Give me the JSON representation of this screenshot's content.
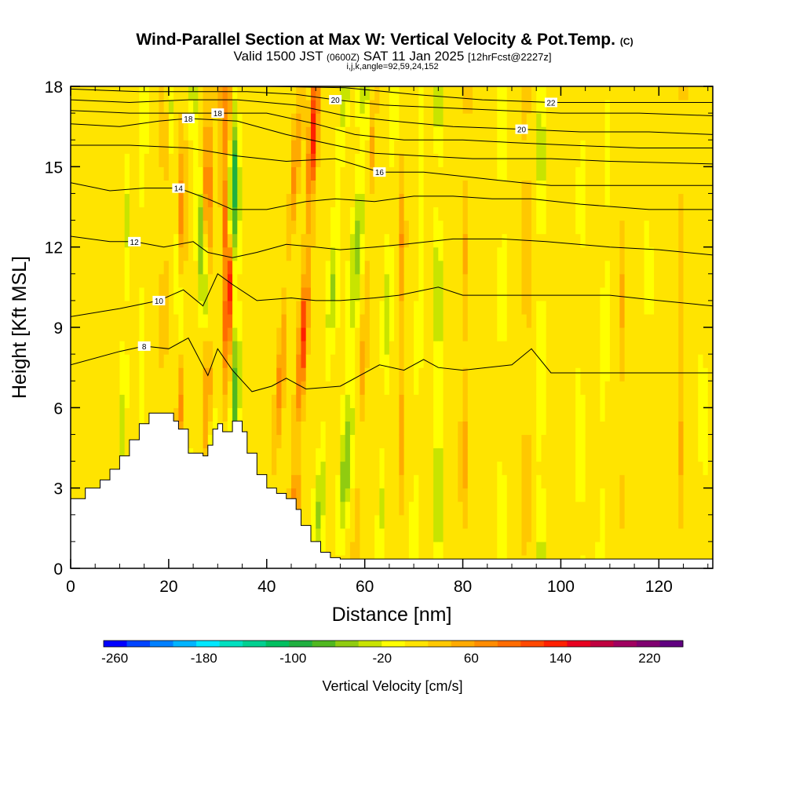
{
  "chart_data": {
    "type": "heatmap",
    "title": "Wind-Parallel Section at Max W: Vertical Velocity & Pot.Temp.",
    "title_mark": "(C)",
    "subtitle_parts": [
      "Valid 1500 JST ",
      "(0600Z)",
      " SAT 11 Jan 2025 ",
      "[12hrFcst@2227z]"
    ],
    "subtitle2": "i,j,k,angle=92,59,24,152",
    "xlabel": "Distance [nm]",
    "ylabel": "Height [Kft MSL]",
    "xlim": [
      0,
      131
    ],
    "ylim": [
      0,
      18
    ],
    "x_ticks": [
      "0",
      "20",
      "40",
      "60",
      "80",
      "100",
      "120"
    ],
    "y_ticks": [
      "0",
      "3",
      "6",
      "9",
      "12",
      "15",
      "18"
    ],
    "colorbar": {
      "label": "Vertical Velocity [cm/s]",
      "tick_labels": [
        "-260",
        "-180",
        "-100",
        "-20",
        "60",
        "140",
        "220"
      ],
      "colors": [
        "#0000ff",
        "#0044ff",
        "#0080ff",
        "#00b4ff",
        "#00e8ff",
        "#00e0c0",
        "#00d090",
        "#00c060",
        "#20b040",
        "#50b820",
        "#90cc10",
        "#c8e400",
        "#ffff00",
        "#ffe400",
        "#ffc800",
        "#ffaa00",
        "#ff8c00",
        "#ff6c00",
        "#ff4800",
        "#ff2000",
        "#e80020",
        "#c00040",
        "#a00060",
        "#800070",
        "#600080"
      ]
    },
    "terrain": [
      [
        0,
        2.6
      ],
      [
        3,
        3.0
      ],
      [
        6,
        3.3
      ],
      [
        8,
        3.7
      ],
      [
        10,
        4.2
      ],
      [
        12,
        4.8
      ],
      [
        14,
        5.4
      ],
      [
        16,
        5.8
      ],
      [
        19,
        5.8
      ],
      [
        21,
        5.5
      ],
      [
        22,
        5.2
      ],
      [
        24,
        4.3
      ],
      [
        27,
        4.2
      ],
      [
        28,
        4.6
      ],
      [
        29,
        5.2
      ],
      [
        30,
        5.4
      ],
      [
        31,
        5.1
      ],
      [
        33,
        5.5
      ],
      [
        35,
        5.1
      ],
      [
        36,
        4.3
      ],
      [
        38,
        3.5
      ],
      [
        40,
        3.0
      ],
      [
        42,
        2.8
      ],
      [
        44,
        2.6
      ],
      [
        46,
        2.2
      ],
      [
        47,
        1.6
      ],
      [
        49,
        1.0
      ],
      [
        51,
        0.6
      ],
      [
        53,
        0.4
      ],
      [
        55,
        0.35
      ],
      [
        131,
        0.35
      ]
    ],
    "pot_temp_contours": [
      {
        "label": "8",
        "label_x": 15,
        "points": [
          [
            0,
            7.6
          ],
          [
            10,
            8.1
          ],
          [
            15,
            8.3
          ],
          [
            20,
            8.2
          ],
          [
            24,
            8.6
          ],
          [
            28,
            7.2
          ],
          [
            30,
            8.2
          ],
          [
            33,
            7.4
          ],
          [
            37,
            6.6
          ],
          [
            41,
            6.8
          ],
          [
            44,
            7.1
          ],
          [
            48,
            6.7
          ],
          [
            55,
            6.8
          ],
          [
            63,
            7.6
          ],
          [
            68,
            7.4
          ],
          [
            72,
            7.8
          ],
          [
            75,
            7.5
          ],
          [
            80,
            7.4
          ],
          [
            90,
            7.6
          ],
          [
            94,
            8.2
          ],
          [
            98,
            7.3
          ],
          [
            110,
            7.3
          ],
          [
            120,
            7.3
          ],
          [
            131,
            7.3
          ]
        ]
      },
      {
        "label": "10",
        "label_x": 18,
        "points": [
          [
            0,
            9.4
          ],
          [
            10,
            9.7
          ],
          [
            18,
            10.0
          ],
          [
            23,
            10.4
          ],
          [
            27,
            9.8
          ],
          [
            30,
            11.0
          ],
          [
            33,
            10.6
          ],
          [
            38,
            10.0
          ],
          [
            45,
            10.1
          ],
          [
            50,
            10.0
          ],
          [
            55,
            10.0
          ],
          [
            62,
            10.1
          ],
          [
            67,
            10.2
          ],
          [
            75,
            10.5
          ],
          [
            80,
            10.2
          ],
          [
            90,
            10.2
          ],
          [
            95,
            10.2
          ],
          [
            100,
            10.2
          ],
          [
            110,
            10.2
          ],
          [
            120,
            10.0
          ],
          [
            131,
            9.8
          ]
        ]
      },
      {
        "label": "12",
        "label_x": 13,
        "points": [
          [
            0,
            12.4
          ],
          [
            8,
            12.2
          ],
          [
            13,
            12.2
          ],
          [
            19,
            12.0
          ],
          [
            25,
            12.2
          ],
          [
            28,
            11.8
          ],
          [
            33,
            11.6
          ],
          [
            38,
            11.8
          ],
          [
            44,
            12.1
          ],
          [
            50,
            12.0
          ],
          [
            55,
            11.9
          ],
          [
            62,
            12.0
          ],
          [
            68,
            12.1
          ],
          [
            78,
            12.3
          ],
          [
            88,
            12.3
          ],
          [
            97,
            12.2
          ],
          [
            110,
            12.0
          ],
          [
            120,
            11.9
          ],
          [
            131,
            11.7
          ]
        ]
      },
      {
        "label": "14",
        "label_x": 22,
        "points": [
          [
            0,
            14.4
          ],
          [
            8,
            14.1
          ],
          [
            15,
            14.2
          ],
          [
            22,
            14.2
          ],
          [
            28,
            13.8
          ],
          [
            33,
            13.4
          ],
          [
            40,
            13.4
          ],
          [
            48,
            13.7
          ],
          [
            54,
            13.8
          ],
          [
            62,
            13.7
          ],
          [
            70,
            13.9
          ],
          [
            78,
            13.9
          ],
          [
            86,
            13.8
          ],
          [
            94,
            13.8
          ],
          [
            104,
            13.6
          ],
          [
            118,
            13.4
          ],
          [
            131,
            13.4
          ]
        ]
      },
      {
        "label": "16",
        "label_x": 63,
        "points": [
          [
            0,
            15.8
          ],
          [
            12,
            15.8
          ],
          [
            24,
            15.7
          ],
          [
            34,
            15.4
          ],
          [
            44,
            15.2
          ],
          [
            54,
            15.3
          ],
          [
            63,
            14.8
          ],
          [
            72,
            14.8
          ],
          [
            82,
            14.6
          ],
          [
            92,
            14.4
          ],
          [
            98,
            14.3
          ],
          [
            105,
            14.3
          ],
          [
            115,
            14.3
          ],
          [
            131,
            14.3
          ]
        ]
      },
      {
        "label": "18",
        "label_x": 24,
        "points": [
          [
            0,
            16.6
          ],
          [
            10,
            16.5
          ],
          [
            18,
            16.7
          ],
          [
            24,
            16.8
          ],
          [
            34,
            16.7
          ],
          [
            44,
            16.2
          ],
          [
            54,
            15.8
          ],
          [
            62,
            15.5
          ],
          [
            72,
            15.4
          ],
          [
            82,
            15.3
          ],
          [
            92,
            15.3
          ],
          [
            98,
            15.3
          ],
          [
            110,
            15.2
          ],
          [
            131,
            15.1
          ]
        ]
      },
      {
        "label": "18",
        "label_x": 30,
        "points": [
          [
            0,
            17.1
          ],
          [
            12,
            17.0
          ],
          [
            22,
            17.0
          ],
          [
            30,
            17.0
          ],
          [
            40,
            17.0
          ],
          [
            50,
            16.6
          ],
          [
            58,
            16.2
          ],
          [
            68,
            16.0
          ],
          [
            80,
            16.0
          ],
          [
            90,
            15.9
          ],
          [
            102,
            15.8
          ],
          [
            116,
            15.7
          ],
          [
            131,
            15.7
          ]
        ]
      },
      {
        "label": "20",
        "label_x": 92,
        "points": [
          [
            0,
            17.5
          ],
          [
            12,
            17.4
          ],
          [
            24,
            17.5
          ],
          [
            34,
            17.5
          ],
          [
            46,
            17.3
          ],
          [
            56,
            16.9
          ],
          [
            66,
            16.7
          ],
          [
            78,
            16.5
          ],
          [
            92,
            16.4
          ],
          [
            104,
            16.3
          ],
          [
            118,
            16.3
          ],
          [
            131,
            16.2
          ]
        ]
      },
      {
        "label": "20",
        "label_x": 54,
        "points": [
          [
            0,
            17.9
          ],
          [
            14,
            17.8
          ],
          [
            26,
            17.8
          ],
          [
            36,
            17.8
          ],
          [
            46,
            17.7
          ],
          [
            54,
            17.5
          ],
          [
            64,
            17.3
          ],
          [
            76,
            17.2
          ],
          [
            88,
            17.1
          ],
          [
            100,
            17.0
          ],
          [
            116,
            17.0
          ],
          [
            131,
            16.9
          ]
        ]
      },
      {
        "label": "22",
        "label_x": 98,
        "points": [
          [
            40,
            18.0
          ],
          [
            56,
            17.95
          ],
          [
            70,
            17.7
          ],
          [
            84,
            17.5
          ],
          [
            98,
            17.4
          ],
          [
            112,
            17.4
          ],
          [
            131,
            17.4
          ]
        ]
      }
    ]
  }
}
